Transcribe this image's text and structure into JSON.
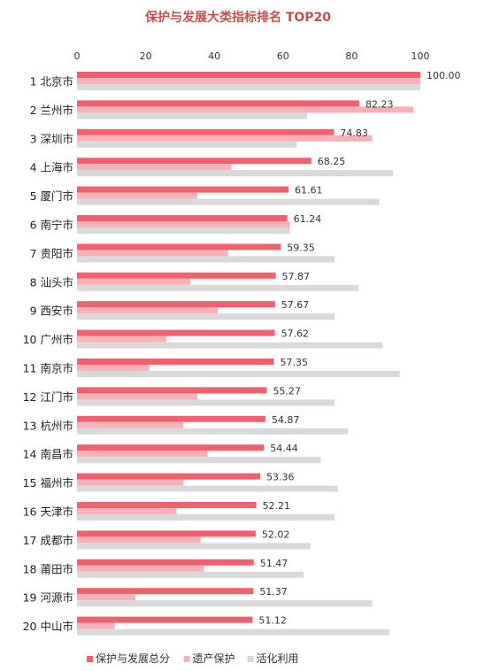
{
  "chart_data": {
    "type": "bar",
    "orientation": "horizontal",
    "title": "保护与发展大类指标排名 TOP20",
    "xlim": [
      0,
      100
    ],
    "xticks": [
      "0",
      "20",
      "40",
      "60",
      "80",
      "100"
    ],
    "x_axis_position": "top",
    "grid": false,
    "legend_position": "bottom",
    "categories": [
      "1 北京市",
      "2 兰州市",
      "3 深圳市",
      "4 上海市",
      "5 厦门市",
      "6 南宁市",
      "7 贵阳市",
      "8 汕头市",
      "9 西安市",
      "10 广州市",
      "11 南京市",
      "12 江门市",
      "13 杭州市",
      "14 南昌市",
      "15 福州市",
      "16 天津市",
      "17 成都市",
      "18 莆田市",
      "19 河源市",
      "20 中山市"
    ],
    "series": [
      {
        "name": "保护与发展总分",
        "color": "#f0606e",
        "values": [
          100.0,
          82.23,
          74.83,
          68.25,
          61.61,
          61.24,
          59.35,
          57.87,
          57.67,
          57.62,
          57.35,
          55.27,
          54.87,
          54.44,
          53.36,
          52.21,
          52.02,
          51.47,
          51.37,
          51.12
        ],
        "labels": [
          "100.00",
          "82.23",
          "74.83",
          "68.25",
          "61.61",
          "61.24",
          "59.35",
          "57.87",
          "57.67",
          "57.62",
          "57.35",
          "55.27",
          "54.87",
          "54.44",
          "53.36",
          "52.21",
          "52.02",
          "51.47",
          "51.37",
          "51.12"
        ]
      },
      {
        "name": "遗产保护",
        "color": "#f7b1b8",
        "values": [
          100,
          98,
          86,
          45,
          35,
          62,
          44,
          33,
          41,
          26,
          21,
          35,
          31,
          38,
          31,
          29,
          36,
          37,
          17,
          11
        ]
      },
      {
        "name": "活化利用",
        "color": "#d9d9d9",
        "values": [
          100,
          67,
          64,
          92,
          88,
          62,
          75,
          82,
          75,
          89,
          94,
          75,
          79,
          71,
          76,
          75,
          68,
          66,
          86,
          91
        ]
      }
    ]
  }
}
